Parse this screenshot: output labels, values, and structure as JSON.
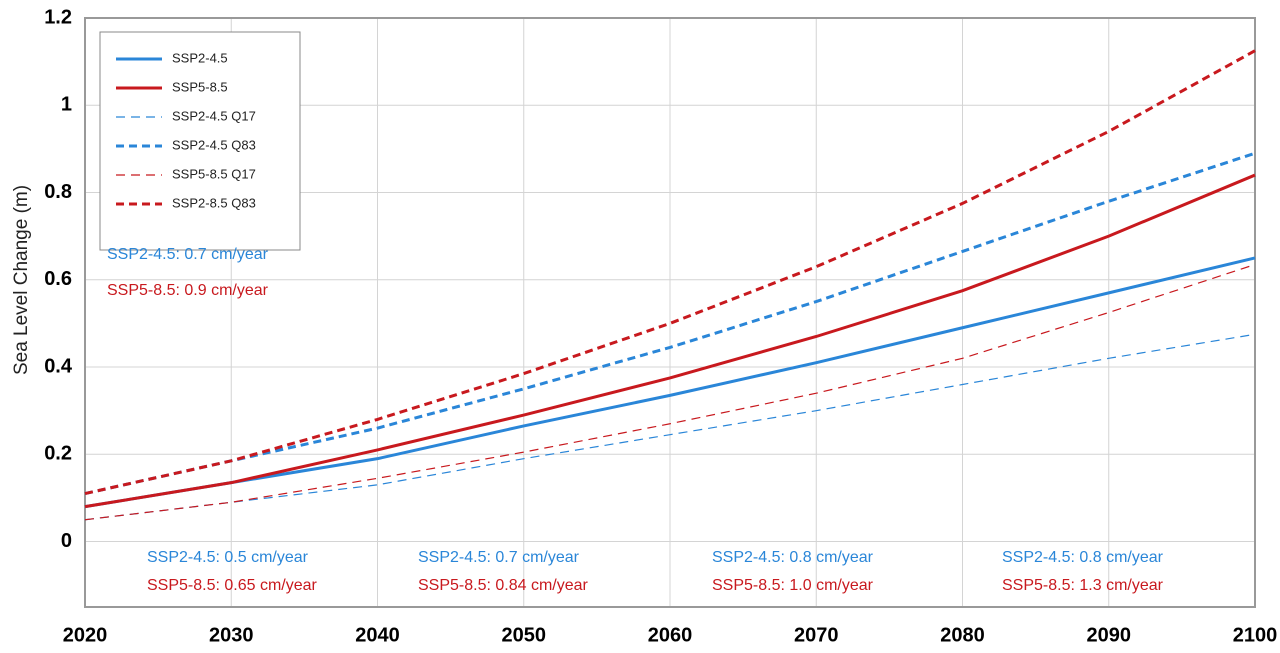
{
  "chart_data": {
    "type": "line",
    "ylabel": "Sea Level Change (m)",
    "x": [
      2020,
      2030,
      2040,
      2050,
      2060,
      2070,
      2080,
      2090,
      2100
    ],
    "xlim": [
      2020,
      2100
    ],
    "xticks": [
      2020,
      2030,
      2040,
      2050,
      2060,
      2070,
      2080,
      2090,
      2100
    ],
    "ylim": [
      -0.15,
      1.2
    ],
    "yticks": [
      0,
      0.2,
      0.4,
      0.6,
      0.8,
      1,
      1.2
    ],
    "grid": true,
    "legend": "upper left",
    "series": [
      {
        "name": "SSP2-4.5",
        "color": "#2a86d8",
        "line_style": "solid",
        "values": [
          0.08,
          0.135,
          0.19,
          0.265,
          0.335,
          0.41,
          0.49,
          0.57,
          0.65
        ]
      },
      {
        "name": "SSP5-8.5",
        "color": "#c8191e",
        "line_style": "solid",
        "values": [
          0.08,
          0.135,
          0.21,
          0.29,
          0.375,
          0.47,
          0.575,
          0.7,
          0.84
        ]
      },
      {
        "name": "SSP2-4.5 Q17",
        "color": "#2a86d8",
        "line_style": "thin-dash",
        "values": [
          0.05,
          0.09,
          0.13,
          0.19,
          0.245,
          0.3,
          0.36,
          0.42,
          0.475
        ]
      },
      {
        "name": "SSP2-4.5 Q83",
        "color": "#2a86d8",
        "line_style": "dash",
        "values": [
          0.11,
          0.185,
          0.26,
          0.35,
          0.445,
          0.55,
          0.665,
          0.78,
          0.89
        ]
      },
      {
        "name": "SSP5-8.5 Q17",
        "color": "#c8191e",
        "line_style": "thin-dash",
        "values": [
          0.05,
          0.09,
          0.145,
          0.205,
          0.27,
          0.34,
          0.42,
          0.525,
          0.635
        ]
      },
      {
        "name": "SSP2-8.5 Q83",
        "color": "#c8191e",
        "line_style": "dash",
        "values": [
          0.11,
          0.185,
          0.28,
          0.385,
          0.5,
          0.63,
          0.775,
          0.94,
          1.125
        ]
      }
    ],
    "annotations": [
      {
        "text": "SSP2-4.5: 0.7 cm/year",
        "color": "#2a86d8"
      },
      {
        "text": "SSP5-8.5: 0.9 cm/year",
        "color": "#c8191e"
      },
      {
        "text": "SSP2-4.5: 0.5 cm/year",
        "color": "#2a86d8"
      },
      {
        "text": "SSP5-8.5: 0.65 cm/year",
        "color": "#c8191e"
      },
      {
        "text": "SSP2-4.5: 0.7 cm/year",
        "color": "#2a86d8"
      },
      {
        "text": "SSP5-8.5: 0.84 cm/year",
        "color": "#c8191e"
      },
      {
        "text": "SSP2-4.5: 0.8 cm/year",
        "color": "#2a86d8"
      },
      {
        "text": "SSP5-8.5: 1.0 cm/year",
        "color": "#c8191e"
      },
      {
        "text": "SSP2-4.5: 0.8 cm/year",
        "color": "#2a86d8"
      },
      {
        "text": "SSP5-8.5: 1.3 cm/year",
        "color": "#c8191e"
      }
    ]
  }
}
